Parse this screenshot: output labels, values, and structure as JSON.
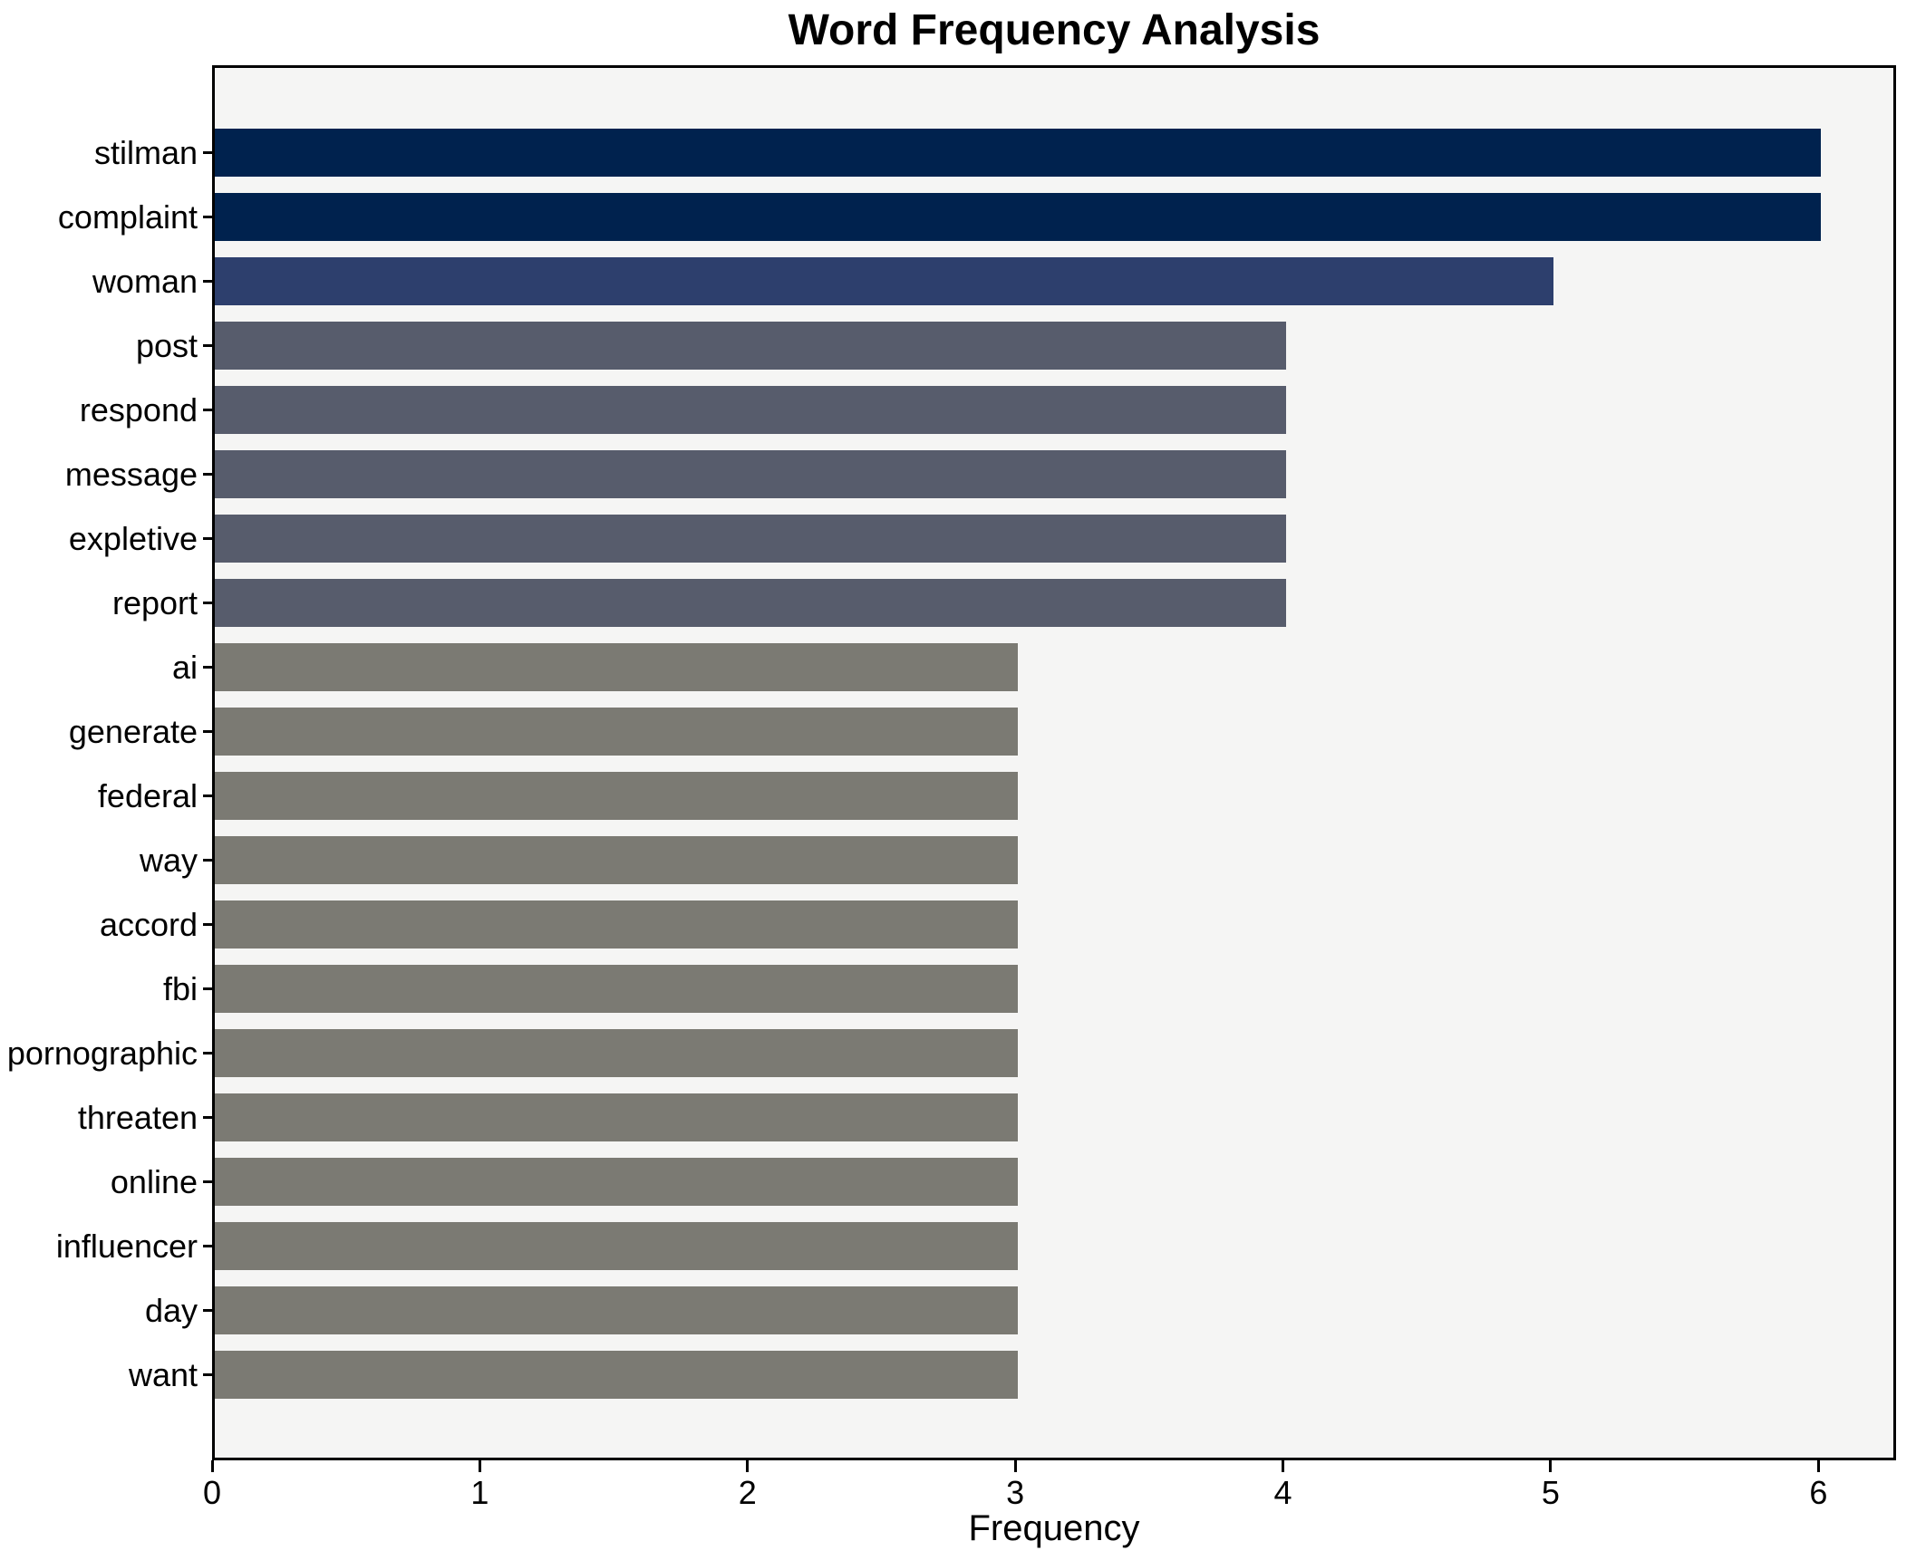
{
  "title": "Word Frequency Analysis",
  "chart_data": {
    "type": "bar",
    "orientation": "horizontal",
    "title": "Word Frequency Analysis",
    "xlabel": "Frequency",
    "ylabel": "",
    "categories": [
      "stilman",
      "complaint",
      "woman",
      "post",
      "respond",
      "message",
      "expletive",
      "report",
      "ai",
      "generate",
      "federal",
      "way",
      "accord",
      "fbi",
      "pornographic",
      "threaten",
      "online",
      "influencer",
      "day",
      "want"
    ],
    "values": [
      6,
      6,
      5,
      4,
      4,
      4,
      4,
      4,
      3,
      3,
      3,
      3,
      3,
      3,
      3,
      3,
      3,
      3,
      3,
      3
    ],
    "xticks": [
      0,
      1,
      2,
      3,
      4,
      5,
      6
    ],
    "xlim": [
      0,
      6.29
    ],
    "grid": false,
    "legend": "none",
    "colors": {
      "value_6": "#00224e",
      "value_5": "#2d3f6d",
      "value_4": "#575c6c",
      "value_3": "#7b7a73",
      "plot_background": "#f5f5f4",
      "spine": "#000000",
      "figure_background": "#ffffff"
    }
  }
}
